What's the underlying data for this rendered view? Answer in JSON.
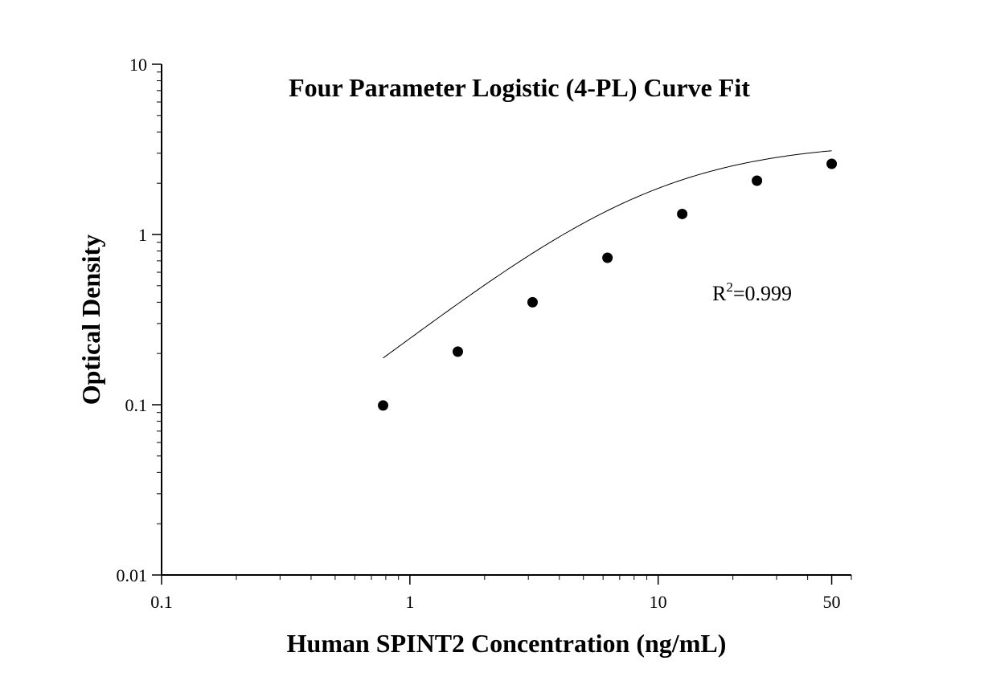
{
  "chart_data": {
    "type": "scatter",
    "title": "Four Parameter Logistic (4-PL) Curve Fit",
    "xlabel": "Human SPINT2 Concentration (ng/mL)",
    "ylabel": "Optical Density",
    "x_scale": "log",
    "y_scale": "log",
    "xlim": [
      0.1,
      60
    ],
    "ylim": [
      0.01,
      10
    ],
    "x_ticks": [
      {
        "value": 0.1,
        "label": "0.1"
      },
      {
        "value": 1,
        "label": "1"
      },
      {
        "value": 10,
        "label": "10"
      },
      {
        "value": 50,
        "label": "50"
      }
    ],
    "y_ticks": [
      {
        "value": 0.01,
        "label": "0.01"
      },
      {
        "value": 0.1,
        "label": "0.1"
      },
      {
        "value": 1,
        "label": "1"
      },
      {
        "value": 10,
        "label": "10"
      }
    ],
    "grid": false,
    "series": [
      {
        "x": [
          0.78,
          1.56,
          3.12,
          6.25,
          12.5,
          25,
          50
        ],
        "y": [
          0.099,
          0.205,
          0.4,
          0.73,
          1.32,
          2.07,
          2.6
        ]
      }
    ],
    "fit_curve": {
      "model": "4PL",
      "x_range": [
        0.78,
        50
      ],
      "params": {
        "A": 0.012,
        "B": 1.2,
        "C": 9.0,
        "D": 3.5
      }
    },
    "annotation": {
      "r_label": "R",
      "superscript": "2",
      "value_text": "=0.999"
    }
  }
}
